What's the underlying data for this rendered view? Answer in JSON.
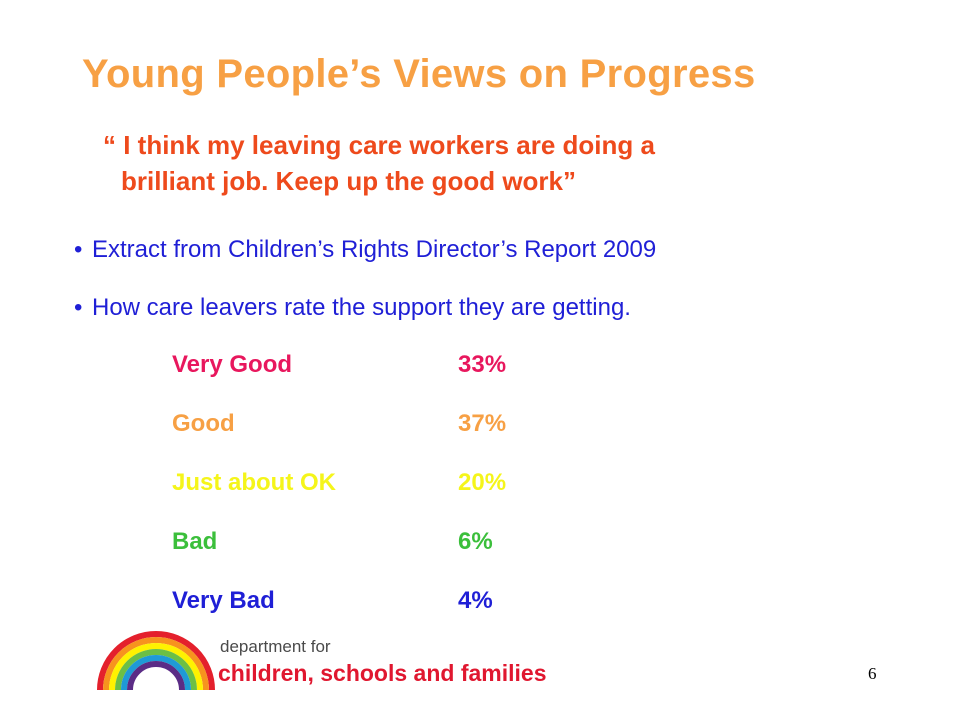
{
  "title": "Young People’s Views on Progress",
  "quote": {
    "line1": "“ I think my leaving care workers are doing a",
    "line2": "brilliant job.  Keep up the good work”"
  },
  "bullets": [
    "Extract from Children’s Rights Director’s Report 2009",
    "How care leavers rate the support they are getting."
  ],
  "bullet_marker": "•",
  "ratings": [
    {
      "label": "Very Good",
      "value": "33%",
      "color": "#e8175d"
    },
    {
      "label": "Good",
      "value": "37%",
      "color": "#f7a044"
    },
    {
      "label": "Just about OK",
      "value": "20%",
      "color": "#f5f51a"
    },
    {
      "label": "Bad",
      "value": "6%",
      "color": "#3bbf3b"
    },
    {
      "label": "Very Bad",
      "value": "4%",
      "color": "#1f1fd6"
    }
  ],
  "logo": {
    "line1": "department for",
    "line2": "children, schools and families",
    "rainbow_colors": [
      "#e4202c",
      "#f7931e",
      "#fff200",
      "#6cbf45",
      "#1f9ad6",
      "#5b2c86"
    ]
  },
  "page_number": "6",
  "colors": {
    "title": "#f7a044",
    "quote": "#ee4a1c",
    "bullets": "#1f1fd6"
  }
}
